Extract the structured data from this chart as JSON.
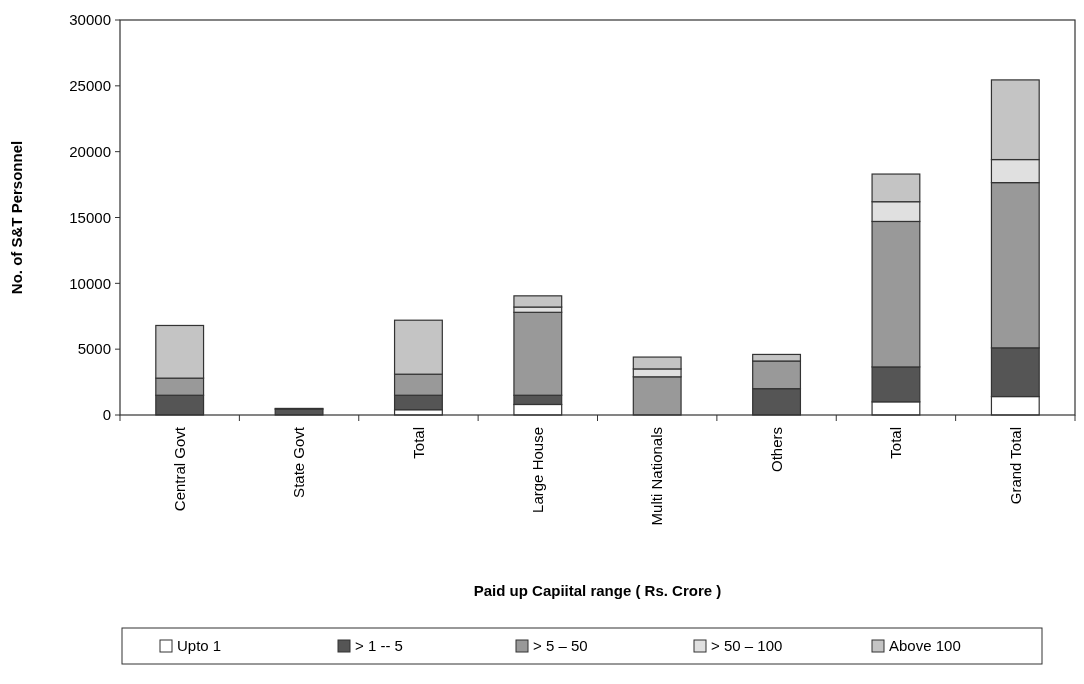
{
  "chart_data": {
    "type": "bar",
    "stacked": true,
    "xlabel": "Paid up Capiital range ( Rs. Crore )",
    "ylabel": "No. of S&T Personnel",
    "categories": [
      "Central Govt",
      "State Govt",
      "Total",
      "Large House",
      "Multi Nationals",
      "Others",
      "Total",
      "Grand Total"
    ],
    "ylim": [
      0,
      30000
    ],
    "yticks": [
      0,
      5000,
      10000,
      15000,
      20000,
      25000,
      30000
    ],
    "legend": "bottom",
    "grid": false,
    "series": [
      {
        "name": "Upto 1",
        "color": "#ffffff",
        "values": [
          null,
          null,
          400,
          800,
          null,
          null,
          1000,
          1400
        ]
      },
      {
        "name": "> 1 -- 5",
        "color": "#555555",
        "values": [
          1500,
          450,
          1100,
          700,
          null,
          2000,
          2650,
          3700
        ]
      },
      {
        "name": "> 5 – 50",
        "color": "#999999",
        "values": [
          1300,
          50,
          1600,
          6300,
          2900,
          2100,
          11050,
          12550
        ]
      },
      {
        "name": "> 50 – 100",
        "color": "#e0e0e0",
        "values": [
          0,
          0,
          0,
          400,
          600,
          0,
          1500,
          1750
        ]
      },
      {
        "name": "Above 100",
        "color": "#c4c4c4",
        "values": [
          4000,
          0,
          4100,
          850,
          900,
          500,
          2100,
          6050
        ]
      }
    ]
  }
}
